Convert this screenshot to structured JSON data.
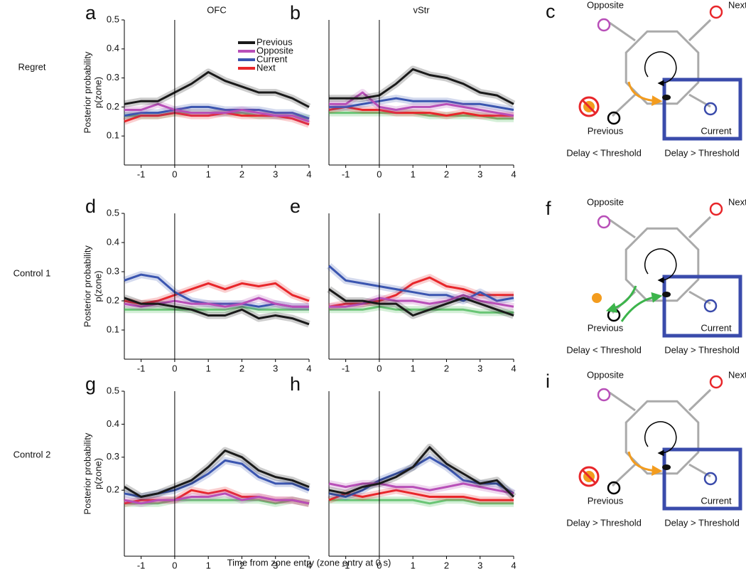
{
  "x_label": "Time from zone entry (zone entry at 0 s)",
  "chart_data": [
    {
      "type": "line",
      "panel": "a",
      "title": "OFC",
      "row_label": "Regret",
      "ylabel": [
        "Posterior probability",
        "p(zone)"
      ],
      "x": [
        -1.5,
        -1,
        -0.5,
        0,
        0.5,
        1,
        1.5,
        2,
        2.5,
        3,
        3.5,
        4
      ],
      "xlim": [
        -1.5,
        4
      ],
      "xticks": [
        -1,
        0,
        1,
        2,
        3,
        4
      ],
      "ylim": [
        0,
        0.5
      ],
      "yticks": [
        0.1,
        0.2,
        0.3,
        0.4,
        0.5
      ],
      "vline": 0,
      "legend": true,
      "series": [
        {
          "name": "Previous",
          "color": "#1a1a1a",
          "values": [
            0.21,
            0.22,
            0.22,
            0.25,
            0.28,
            0.32,
            0.29,
            0.27,
            0.25,
            0.25,
            0.23,
            0.2
          ]
        },
        {
          "name": "Opposite",
          "color": "#b84fb8",
          "values": [
            0.19,
            0.19,
            0.21,
            0.19,
            0.18,
            0.18,
            0.18,
            0.19,
            0.18,
            0.17,
            0.17,
            0.15
          ]
        },
        {
          "name": "Current",
          "color": "#3a55b0",
          "values": [
            0.17,
            0.18,
            0.18,
            0.19,
            0.2,
            0.2,
            0.19,
            0.19,
            0.19,
            0.18,
            0.18,
            0.16
          ]
        },
        {
          "name": "Next",
          "color": "#e8262a",
          "values": [
            0.15,
            0.17,
            0.17,
            0.18,
            0.17,
            0.17,
            0.18,
            0.17,
            0.17,
            0.17,
            0.16,
            0.14
          ]
        },
        {
          "color": "#3cb44b",
          "values": [
            0.17,
            0.17,
            0.17,
            0.18,
            0.18,
            0.18,
            0.18,
            0.18,
            0.17,
            0.17,
            0.17,
            0.16
          ]
        }
      ]
    },
    {
      "type": "line",
      "panel": "b",
      "title": "vStr",
      "x": [
        -1.5,
        -1,
        -0.5,
        0,
        0.5,
        1,
        1.5,
        2,
        2.5,
        3,
        3.5,
        4
      ],
      "xlim": [
        -1.5,
        4
      ],
      "xticks": [
        -1,
        0,
        1,
        2,
        3,
        4
      ],
      "ylim": [
        0,
        0.5
      ],
      "vline": 0,
      "series": [
        {
          "color": "#1a1a1a",
          "values": [
            0.23,
            0.23,
            0.23,
            0.24,
            0.28,
            0.33,
            0.31,
            0.3,
            0.28,
            0.25,
            0.24,
            0.21
          ]
        },
        {
          "color": "#b84fb8",
          "values": [
            0.21,
            0.21,
            0.25,
            0.2,
            0.19,
            0.2,
            0.2,
            0.21,
            0.2,
            0.19,
            0.18,
            0.17
          ]
        },
        {
          "color": "#3a55b0",
          "values": [
            0.2,
            0.2,
            0.21,
            0.22,
            0.23,
            0.22,
            0.22,
            0.22,
            0.21,
            0.21,
            0.2,
            0.19
          ]
        },
        {
          "color": "#e8262a",
          "values": [
            0.19,
            0.2,
            0.19,
            0.19,
            0.18,
            0.18,
            0.18,
            0.17,
            0.18,
            0.17,
            0.17,
            0.17
          ]
        },
        {
          "color": "#3cb44b",
          "values": [
            0.18,
            0.18,
            0.18,
            0.18,
            0.18,
            0.18,
            0.17,
            0.17,
            0.17,
            0.17,
            0.16,
            0.16
          ]
        }
      ]
    },
    {
      "type": "line",
      "panel": "d",
      "row_label": "Control 1",
      "ylabel": [
        "Posterior probability",
        "p(zone)"
      ],
      "x": [
        -1.5,
        -1,
        -0.5,
        0,
        0.5,
        1,
        1.5,
        2,
        2.5,
        3,
        3.5,
        4
      ],
      "xlim": [
        -1.5,
        4
      ],
      "xticks": [
        -1,
        0,
        1,
        2,
        3,
        4
      ],
      "ylim": [
        0,
        0.5
      ],
      "yticks": [
        0.1,
        0.2,
        0.3,
        0.4,
        0.5
      ],
      "vline": 0,
      "series": [
        {
          "color": "#1a1a1a",
          "values": [
            0.21,
            0.19,
            0.19,
            0.18,
            0.17,
            0.15,
            0.15,
            0.17,
            0.14,
            0.15,
            0.14,
            0.12
          ]
        },
        {
          "color": "#b84fb8",
          "values": [
            0.19,
            0.18,
            0.19,
            0.2,
            0.19,
            0.19,
            0.18,
            0.19,
            0.21,
            0.19,
            0.18,
            0.18
          ]
        },
        {
          "color": "#3a55b0",
          "values": [
            0.27,
            0.29,
            0.28,
            0.23,
            0.2,
            0.19,
            0.19,
            0.19,
            0.18,
            0.19,
            0.18,
            0.18
          ]
        },
        {
          "color": "#e8262a",
          "values": [
            0.2,
            0.19,
            0.2,
            0.22,
            0.24,
            0.26,
            0.24,
            0.26,
            0.25,
            0.26,
            0.22,
            0.2
          ]
        },
        {
          "color": "#3cb44b",
          "values": [
            0.17,
            0.17,
            0.17,
            0.17,
            0.17,
            0.17,
            0.17,
            0.18,
            0.17,
            0.17,
            0.17,
            0.17
          ]
        }
      ]
    },
    {
      "type": "line",
      "panel": "e",
      "x": [
        -1.5,
        -1,
        -0.5,
        0,
        0.5,
        1,
        1.5,
        2,
        2.5,
        3,
        3.5,
        4
      ],
      "xlim": [
        -1.5,
        4
      ],
      "xticks": [
        -1,
        0,
        1,
        2,
        3,
        4
      ],
      "ylim": [
        0,
        0.5
      ],
      "vline": 0,
      "series": [
        {
          "color": "#1a1a1a",
          "values": [
            0.24,
            0.2,
            0.2,
            0.19,
            0.19,
            0.15,
            0.17,
            0.19,
            0.21,
            0.19,
            0.17,
            0.15
          ]
        },
        {
          "color": "#b84fb8",
          "values": [
            0.18,
            0.18,
            0.19,
            0.21,
            0.2,
            0.2,
            0.19,
            0.2,
            0.22,
            0.2,
            0.19,
            0.18
          ]
        },
        {
          "color": "#3a55b0",
          "values": [
            0.32,
            0.27,
            0.26,
            0.25,
            0.24,
            0.23,
            0.22,
            0.22,
            0.2,
            0.23,
            0.2,
            0.21
          ]
        },
        {
          "color": "#e8262a",
          "values": [
            0.18,
            0.19,
            0.19,
            0.2,
            0.22,
            0.26,
            0.28,
            0.25,
            0.24,
            0.22,
            0.22,
            0.22
          ]
        },
        {
          "color": "#3cb44b",
          "values": [
            0.17,
            0.17,
            0.17,
            0.18,
            0.17,
            0.17,
            0.17,
            0.17,
            0.17,
            0.16,
            0.16,
            0.16
          ]
        }
      ]
    },
    {
      "type": "line",
      "panel": "g",
      "row_label": "Control 2",
      "ylabel": [
        "Posterior probability",
        "p(zone)"
      ],
      "x": [
        -1.5,
        -1,
        -0.5,
        0,
        0.5,
        1,
        1.5,
        2,
        2.5,
        3,
        3.5,
        4
      ],
      "xlim": [
        -1.5,
        4
      ],
      "xticks": [
        -1,
        0,
        1,
        2,
        3,
        4
      ],
      "ylim": [
        0,
        0.5
      ],
      "yticks": [
        0.2,
        0.3,
        0.4,
        0.5
      ],
      "vline": 0,
      "series": [
        {
          "color": "#1a1a1a",
          "values": [
            0.21,
            0.18,
            0.19,
            0.21,
            0.23,
            0.27,
            0.32,
            0.3,
            0.26,
            0.24,
            0.23,
            0.21
          ]
        },
        {
          "color": "#b84fb8",
          "values": [
            0.17,
            0.16,
            0.17,
            0.17,
            0.18,
            0.18,
            0.19,
            0.17,
            0.18,
            0.17,
            0.17,
            0.16
          ]
        },
        {
          "color": "#3a55b0",
          "values": [
            0.19,
            0.18,
            0.19,
            0.2,
            0.22,
            0.25,
            0.29,
            0.28,
            0.24,
            0.22,
            0.22,
            0.2
          ]
        },
        {
          "color": "#e8262a",
          "values": [
            0.16,
            0.17,
            0.17,
            0.17,
            0.2,
            0.19,
            0.2,
            0.18,
            0.18,
            0.17,
            0.17,
            0.16
          ]
        },
        {
          "color": "#3cb44b",
          "values": [
            0.16,
            0.16,
            0.16,
            0.17,
            0.17,
            0.17,
            0.17,
            0.17,
            0.17,
            0.16,
            0.17,
            0.16
          ]
        }
      ]
    },
    {
      "type": "line",
      "panel": "h",
      "x": [
        -1.5,
        -1,
        -0.5,
        0,
        0.5,
        1,
        1.5,
        2,
        2.5,
        3,
        3.5,
        4
      ],
      "xlim": [
        -1.5,
        4
      ],
      "xticks": [
        -1,
        0,
        1,
        2,
        3,
        4
      ],
      "ylim": [
        0,
        0.5
      ],
      "vline": 0,
      "series": [
        {
          "color": "#1a1a1a",
          "values": [
            0.2,
            0.19,
            0.21,
            0.22,
            0.24,
            0.27,
            0.33,
            0.28,
            0.25,
            0.22,
            0.23,
            0.18
          ]
        },
        {
          "color": "#b84fb8",
          "values": [
            0.22,
            0.21,
            0.22,
            0.22,
            0.21,
            0.21,
            0.2,
            0.21,
            0.22,
            0.21,
            0.2,
            0.19
          ]
        },
        {
          "color": "#3a55b0",
          "values": [
            0.19,
            0.18,
            0.2,
            0.23,
            0.25,
            0.27,
            0.3,
            0.27,
            0.23,
            0.22,
            0.22,
            0.19
          ]
        },
        {
          "color": "#e8262a",
          "values": [
            0.17,
            0.19,
            0.18,
            0.19,
            0.2,
            0.19,
            0.18,
            0.18,
            0.18,
            0.17,
            0.17,
            0.17
          ]
        },
        {
          "color": "#3cb44b",
          "values": [
            0.17,
            0.17,
            0.17,
            0.17,
            0.17,
            0.17,
            0.16,
            0.17,
            0.17,
            0.16,
            0.16,
            0.16
          ]
        }
      ]
    }
  ],
  "diagrams": [
    {
      "panel": "c",
      "opposite": "Opposite",
      "next": "Next",
      "previous": "Previous",
      "current": "Current",
      "left_caption": "Delay < Threshold",
      "left_caption_color": "#e8262a",
      "right_caption": "Delay > Threshold"
    },
    {
      "panel": "f",
      "opposite": "Opposite",
      "next": "Next",
      "previous": "Previous",
      "current": "Current",
      "left_caption": "Delay < Threshold",
      "left_caption_color": "#e8262a",
      "right_caption": "Delay > Threshold"
    },
    {
      "panel": "i",
      "opposite": "Opposite",
      "next": "Next",
      "previous": "Previous",
      "current": "Current",
      "left_caption": "Delay > Threshold",
      "left_caption_color": "#9b3fb5",
      "right_caption": "Delay > Threshold"
    }
  ]
}
